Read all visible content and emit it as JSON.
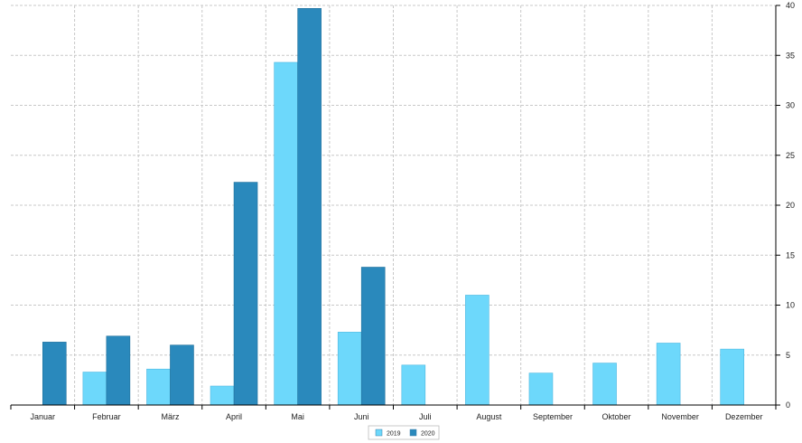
{
  "chart_data": {
    "type": "bar",
    "categories": [
      "Januar",
      "Februar",
      "März",
      "April",
      "Mai",
      "Juni",
      "Juli",
      "August",
      "September",
      "Oktober",
      "November",
      "Dezember"
    ],
    "series": [
      {
        "name": "2019",
        "color": "#6dd8fb",
        "values": [
          0,
          3.3,
          3.6,
          1.9,
          34.3,
          7.3,
          4.0,
          11.0,
          3.2,
          4.2,
          6.2,
          5.6
        ]
      },
      {
        "name": "2020",
        "color": "#2a89bc",
        "values": [
          6.3,
          6.9,
          6.0,
          22.3,
          39.7,
          13.8,
          0,
          0,
          0,
          0,
          0,
          0
        ]
      }
    ],
    "yaxis": {
      "position": "right",
      "ticks": [
        "0",
        "5",
        "10",
        "15",
        "20",
        "25",
        "30",
        "35",
        "40"
      ]
    },
    "ylim": [
      0,
      40
    ],
    "grid": true,
    "legend": "bottom-center"
  }
}
